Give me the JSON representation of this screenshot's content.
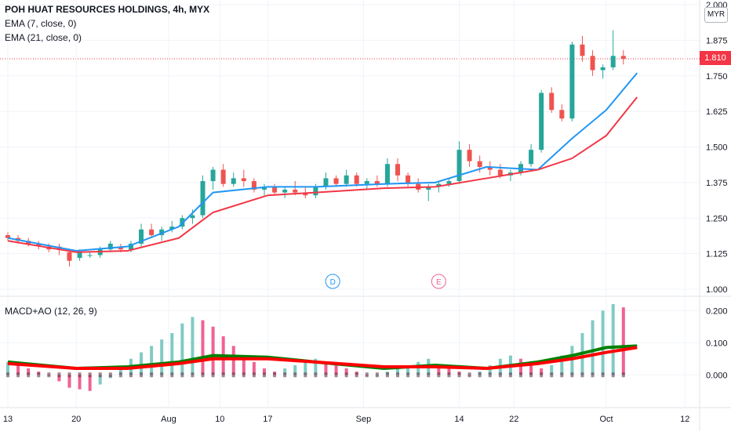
{
  "header": {
    "title": "POH HUAT RESOURCES HOLDINGS, 4h, MYX",
    "ema_short": "EMA (7, close, 0)",
    "ema_long": "EMA (21, close, 0)",
    "osc_title": "MACD+AO (12, 26, 9)",
    "currency": "MYR",
    "last_price": "1.810"
  },
  "colors": {
    "up": "#26a69a",
    "down": "#ef5350",
    "ema7": "#2196f3",
    "ema21": "#f23645",
    "macd": "#008000",
    "signal": "#ff0000",
    "hist_up": "#80cbc4",
    "hist_down": "#f06292"
  },
  "markers": [
    {
      "label": "D",
      "color": "#2196f3",
      "x": 9.5
    },
    {
      "label": "E",
      "color": "#f06292",
      "x": 12.6
    }
  ],
  "chart_data": [
    {
      "type": "candlestick",
      "title": "POH HUAT RESOURCES HOLDINGS, 4h, MYX",
      "y_ticks": [
        "1.000",
        "1.125",
        "1.250",
        "1.375",
        "1.500",
        "1.625",
        "1.750",
        "1.875",
        "2.000"
      ],
      "ylim": [
        1.0,
        2.0
      ],
      "x_ticks": [
        {
          "label": "13",
          "x": 0.0
        },
        {
          "label": "20",
          "x": 2.0
        },
        {
          "label": "Aug",
          "x": 4.7
        },
        {
          "label": "10",
          "x": 6.2
        },
        {
          "label": "17",
          "x": 7.6
        },
        {
          "label": "Sep",
          "x": 10.4
        },
        {
          "label": "14",
          "x": 13.2
        },
        {
          "label": "22",
          "x": 14.8
        },
        {
          "label": "Oct",
          "x": 17.5
        },
        {
          "label": "12",
          "x": 19.8
        }
      ],
      "xlim": [
        0.0,
        20.0
      ],
      "series": [
        {
          "name": "EMA (7, close, 0)",
          "points": [
            [
              0,
              1.18
            ],
            [
              2,
              1.135
            ],
            [
              3.5,
              1.15
            ],
            [
              5,
              1.22
            ],
            [
              6,
              1.34
            ],
            [
              7.6,
              1.36
            ],
            [
              9,
              1.36
            ],
            [
              11,
              1.37
            ],
            [
              12.5,
              1.375
            ],
            [
              14,
              1.43
            ],
            [
              15.5,
              1.42
            ],
            [
              16.5,
              1.53
            ],
            [
              17.5,
              1.63
            ],
            [
              18.4,
              1.76
            ]
          ]
        },
        {
          "name": "EMA (21, close, 0)",
          "points": [
            [
              0,
              1.17
            ],
            [
              2,
              1.13
            ],
            [
              3.5,
              1.135
            ],
            [
              5,
              1.18
            ],
            [
              6,
              1.27
            ],
            [
              7.6,
              1.33
            ],
            [
              9,
              1.34
            ],
            [
              11,
              1.355
            ],
            [
              12.5,
              1.36
            ],
            [
              14,
              1.39
            ],
            [
              15.5,
              1.42
            ],
            [
              16.5,
              1.46
            ],
            [
              17.5,
              1.54
            ],
            [
              18.4,
              1.675
            ]
          ]
        }
      ],
      "candles": [
        [
          0.0,
          1.19,
          1.2,
          1.17,
          1.18
        ],
        [
          0.3,
          1.18,
          1.19,
          1.16,
          1.17
        ],
        [
          0.6,
          1.17,
          1.18,
          1.15,
          1.16
        ],
        [
          0.9,
          1.16,
          1.17,
          1.14,
          1.15
        ],
        [
          1.2,
          1.15,
          1.16,
          1.13,
          1.14
        ],
        [
          1.5,
          1.15,
          1.16,
          1.12,
          1.14
        ],
        [
          1.8,
          1.13,
          1.14,
          1.08,
          1.1
        ],
        [
          2.1,
          1.11,
          1.14,
          1.1,
          1.13
        ],
        [
          2.4,
          1.12,
          1.13,
          1.11,
          1.12
        ],
        [
          2.7,
          1.12,
          1.15,
          1.11,
          1.14
        ],
        [
          3.0,
          1.14,
          1.17,
          1.13,
          1.16
        ],
        [
          3.3,
          1.15,
          1.16,
          1.13,
          1.14
        ],
        [
          3.6,
          1.14,
          1.17,
          1.13,
          1.16
        ],
        [
          3.9,
          1.16,
          1.23,
          1.15,
          1.21
        ],
        [
          4.2,
          1.21,
          1.23,
          1.18,
          1.19
        ],
        [
          4.5,
          1.19,
          1.22,
          1.17,
          1.21
        ],
        [
          4.8,
          1.21,
          1.24,
          1.2,
          1.22
        ],
        [
          5.1,
          1.22,
          1.26,
          1.21,
          1.25
        ],
        [
          5.4,
          1.25,
          1.28,
          1.23,
          1.26
        ],
        [
          5.7,
          1.26,
          1.4,
          1.25,
          1.38
        ],
        [
          6.0,
          1.38,
          1.43,
          1.35,
          1.42
        ],
        [
          6.3,
          1.42,
          1.44,
          1.36,
          1.37
        ],
        [
          6.6,
          1.37,
          1.41,
          1.36,
          1.39
        ],
        [
          6.9,
          1.39,
          1.42,
          1.36,
          1.38
        ],
        [
          7.2,
          1.38,
          1.39,
          1.34,
          1.35
        ],
        [
          7.5,
          1.35,
          1.37,
          1.33,
          1.36
        ],
        [
          7.8,
          1.36,
          1.37,
          1.33,
          1.34
        ],
        [
          8.1,
          1.34,
          1.36,
          1.32,
          1.35
        ],
        [
          8.4,
          1.35,
          1.38,
          1.33,
          1.34
        ],
        [
          8.7,
          1.34,
          1.36,
          1.32,
          1.33
        ],
        [
          9.0,
          1.33,
          1.37,
          1.32,
          1.36
        ],
        [
          9.3,
          1.36,
          1.41,
          1.35,
          1.39
        ],
        [
          9.6,
          1.39,
          1.4,
          1.36,
          1.37
        ],
        [
          9.9,
          1.37,
          1.42,
          1.36,
          1.4
        ],
        [
          10.2,
          1.4,
          1.41,
          1.36,
          1.37
        ],
        [
          10.5,
          1.37,
          1.39,
          1.35,
          1.38
        ],
        [
          10.8,
          1.38,
          1.4,
          1.36,
          1.37
        ],
        [
          11.1,
          1.37,
          1.46,
          1.36,
          1.44
        ],
        [
          11.4,
          1.44,
          1.46,
          1.38,
          1.4
        ],
        [
          11.7,
          1.4,
          1.41,
          1.36,
          1.37
        ],
        [
          12.0,
          1.37,
          1.39,
          1.34,
          1.35
        ],
        [
          12.3,
          1.35,
          1.37,
          1.31,
          1.36
        ],
        [
          12.6,
          1.36,
          1.38,
          1.34,
          1.37
        ],
        [
          12.9,
          1.37,
          1.39,
          1.36,
          1.38
        ],
        [
          13.2,
          1.38,
          1.52,
          1.37,
          1.49
        ],
        [
          13.5,
          1.49,
          1.51,
          1.43,
          1.45
        ],
        [
          13.8,
          1.45,
          1.47,
          1.41,
          1.43
        ],
        [
          14.1,
          1.43,
          1.45,
          1.4,
          1.42
        ],
        [
          14.4,
          1.42,
          1.44,
          1.39,
          1.4
        ],
        [
          14.7,
          1.4,
          1.42,
          1.38,
          1.41
        ],
        [
          15.0,
          1.41,
          1.45,
          1.4,
          1.44
        ],
        [
          15.3,
          1.44,
          1.51,
          1.43,
          1.49
        ],
        [
          15.6,
          1.49,
          1.7,
          1.48,
          1.69
        ],
        [
          15.9,
          1.69,
          1.71,
          1.62,
          1.63
        ],
        [
          16.2,
          1.63,
          1.65,
          1.59,
          1.6
        ],
        [
          16.5,
          1.6,
          1.87,
          1.59,
          1.86
        ],
        [
          16.8,
          1.86,
          1.89,
          1.8,
          1.82
        ],
        [
          17.1,
          1.82,
          1.84,
          1.75,
          1.77
        ],
        [
          17.4,
          1.77,
          1.79,
          1.74,
          1.78
        ],
        [
          17.7,
          1.78,
          1.91,
          1.77,
          1.82
        ],
        [
          18.0,
          1.82,
          1.84,
          1.79,
          1.81
        ]
      ]
    },
    {
      "type": "bar+line",
      "title": "MACD+AO (12, 26, 9)",
      "y_ticks": [
        "0.000",
        "0.100",
        "0.200"
      ],
      "ylim": [
        -0.075,
        0.225
      ],
      "histogram": [
        0.04,
        0.03,
        0.02,
        0.01,
        0.0,
        -0.02,
        -0.04,
        -0.045,
        -0.05,
        -0.03,
        -0.01,
        0.02,
        0.05,
        0.07,
        0.09,
        0.11,
        0.13,
        0.16,
        0.18,
        0.17,
        0.15,
        0.12,
        0.09,
        0.06,
        0.04,
        0.02,
        0.01,
        0.02,
        0.03,
        0.04,
        0.05,
        0.04,
        0.03,
        0.02,
        0.01,
        0.0,
        0.0,
        0.01,
        0.02,
        0.03,
        0.04,
        0.05,
        0.03,
        0.02,
        0.01,
        0.0,
        0.01,
        0.03,
        0.05,
        0.06,
        0.05,
        0.03,
        0.02,
        0.03,
        0.06,
        0.09,
        0.13,
        0.17,
        0.2,
        0.22,
        0.21
      ],
      "series": [
        {
          "name": "MACD",
          "points": [
            [
              0,
              0.04
            ],
            [
              2,
              0.02
            ],
            [
              3.5,
              0.025
            ],
            [
              5,
              0.04
            ],
            [
              6,
              0.06
            ],
            [
              7.6,
              0.055
            ],
            [
              9,
              0.04
            ],
            [
              11,
              0.02
            ],
            [
              12.5,
              0.03
            ],
            [
              14,
              0.02
            ],
            [
              15.5,
              0.04
            ],
            [
              16.5,
              0.06
            ],
            [
              17.5,
              0.085
            ],
            [
              18.4,
              0.09
            ]
          ]
        },
        {
          "name": "Signal",
          "points": [
            [
              0,
              0.035
            ],
            [
              2,
              0.02
            ],
            [
              3.5,
              0.02
            ],
            [
              5,
              0.035
            ],
            [
              6,
              0.05
            ],
            [
              7.6,
              0.05
            ],
            [
              9,
              0.04
            ],
            [
              11,
              0.025
            ],
            [
              12.5,
              0.025
            ],
            [
              14,
              0.02
            ],
            [
              15.5,
              0.035
            ],
            [
              16.5,
              0.05
            ],
            [
              17.5,
              0.07
            ],
            [
              18.4,
              0.085
            ]
          ]
        }
      ]
    }
  ]
}
